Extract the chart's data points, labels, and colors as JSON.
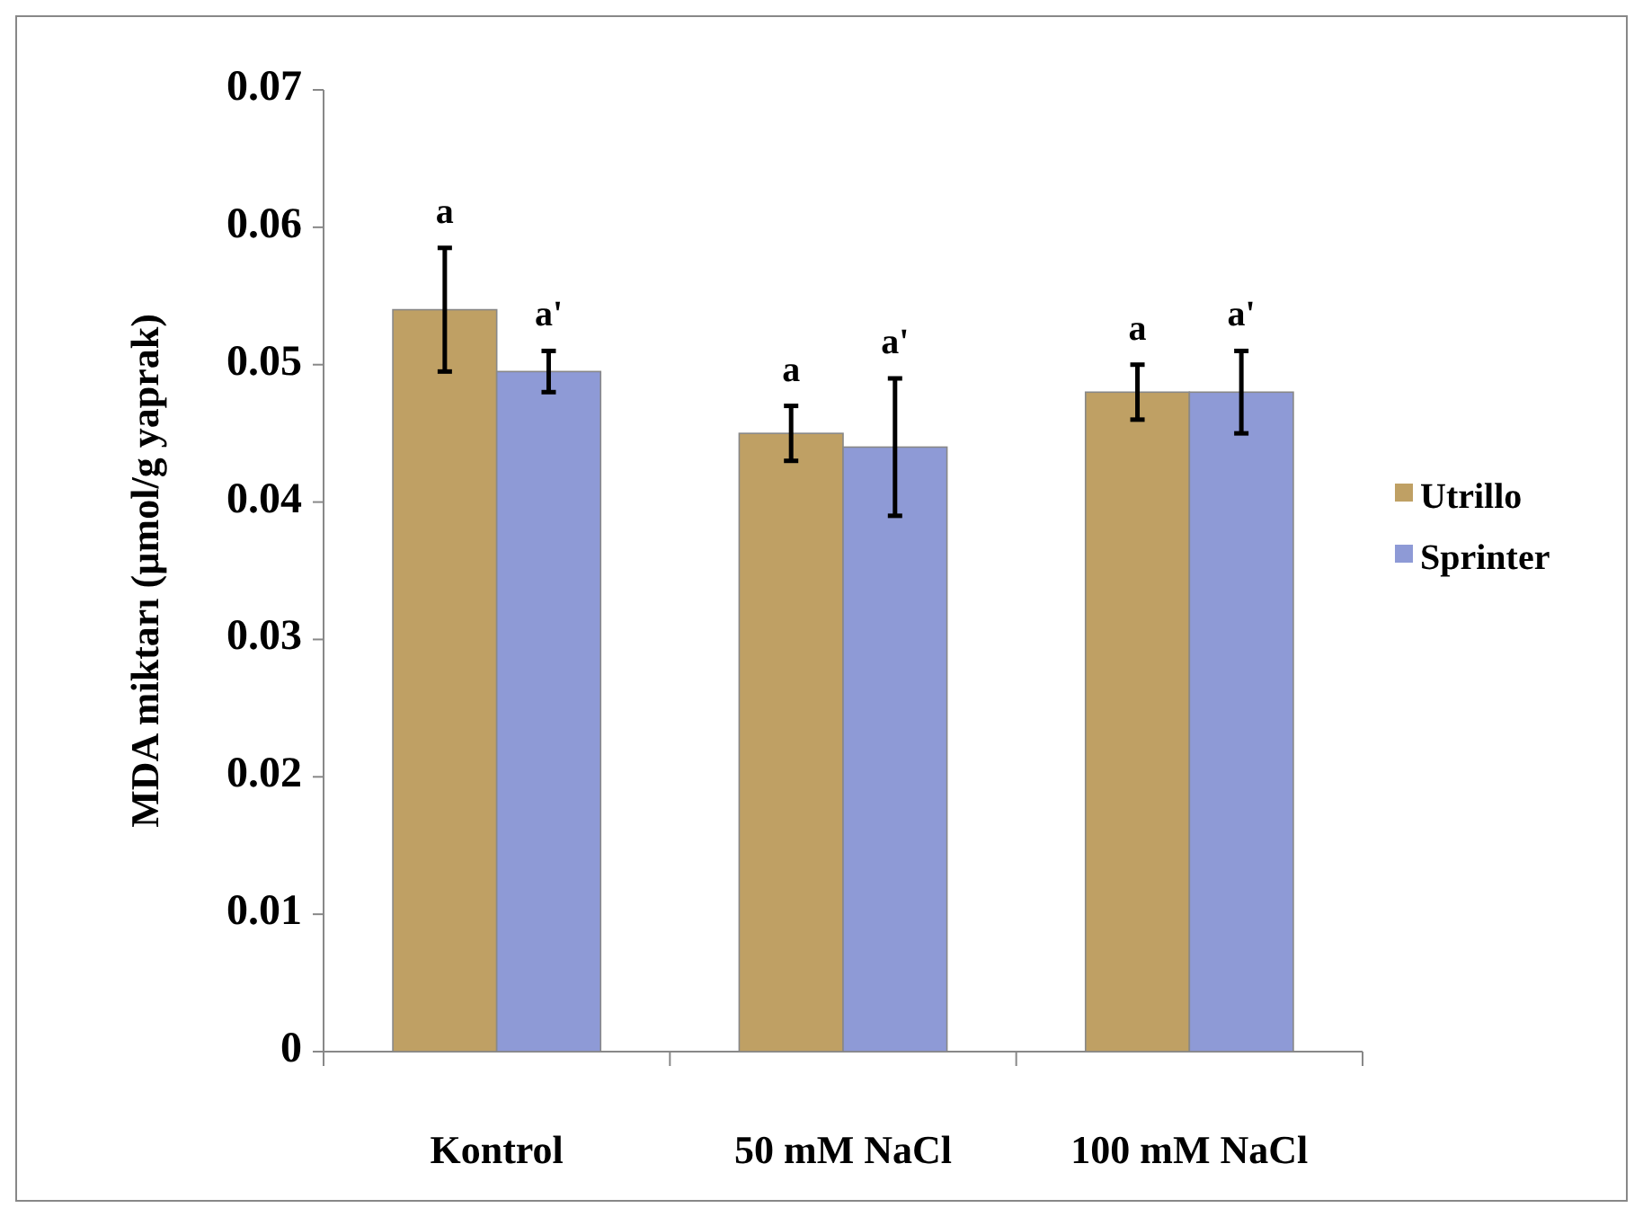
{
  "chart_data": {
    "type": "bar",
    "ylabel": "MDA miktarı (µmol/g yaprak)",
    "categories": [
      "Kontrol",
      "50 mM NaCl",
      "100 mM NaCl"
    ],
    "series": [
      {
        "name": "Utrillo",
        "color": "#bfa064",
        "values": [
          0.054,
          0.045,
          0.048
        ],
        "errors": [
          0.0045,
          0.002,
          0.002
        ]
      },
      {
        "name": "Sprinter",
        "color": "#8e9ad6",
        "values": [
          0.0495,
          0.044,
          0.048
        ],
        "errors": [
          0.0015,
          0.005,
          0.003
        ]
      }
    ],
    "ylim": [
      0,
      0.07
    ],
    "yticks": [
      {
        "value": 0,
        "label": "0"
      },
      0.01,
      0.02,
      0.03,
      0.04,
      0.05,
      0.06,
      0.07
    ],
    "grid": false,
    "legend": "right",
    "annotations": [
      "a",
      "a'",
      "a",
      "a'",
      "a",
      "a'"
    ]
  }
}
